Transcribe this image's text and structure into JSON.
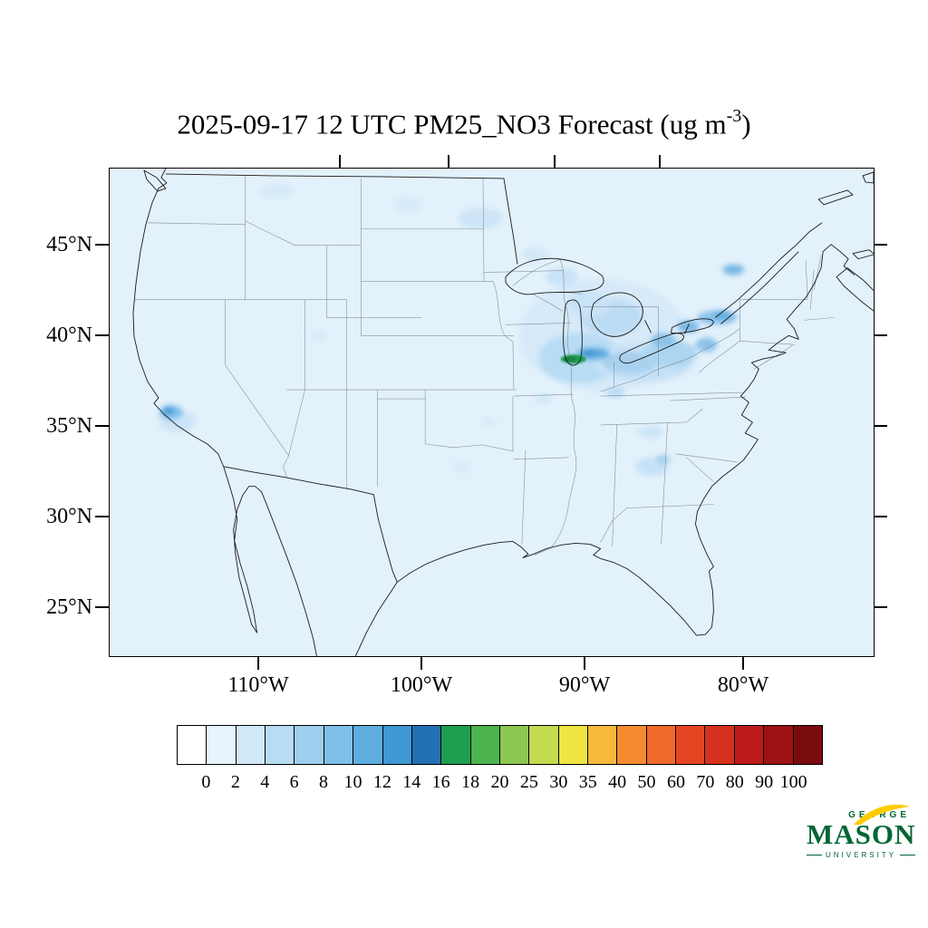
{
  "title": {
    "prefix": "2025-09-17 12 UTC PM25_NO3 Forecast (ug m",
    "sup": "-3",
    "suffix": ")"
  },
  "map": {
    "lat_ticks": [
      "45°N",
      "40°N",
      "35°N",
      "30°N",
      "25°N"
    ],
    "lon_ticks": [
      "110°W",
      "100°W",
      "90°W",
      "80°W"
    ]
  },
  "colorbar": {
    "labels": [
      "0",
      "2",
      "4",
      "6",
      "8",
      "10",
      "12",
      "14",
      "16",
      "18",
      "20",
      "25",
      "30",
      "35",
      "40",
      "50",
      "60",
      "70",
      "80",
      "90",
      "100"
    ],
    "colors": [
      "#ffffff",
      "#e8f4fb",
      "#d1e8f8",
      "#b7dcf4",
      "#9dcfef",
      "#7fc0e8",
      "#5facdf",
      "#3f97d3",
      "#2470b5",
      "#1e9e50",
      "#4db34e",
      "#8cc751",
      "#c3da51",
      "#f0e442",
      "#f6b93c",
      "#f58b31",
      "#ef6a2a",
      "#e64524",
      "#d6301f",
      "#bd1a1a",
      "#9e1214",
      "#7a0c10"
    ]
  },
  "logo": {
    "top": "GEORGE",
    "name": "MASON",
    "bottom": "UNIVERSITY",
    "green": "#006633",
    "gold": "#FFCC00"
  },
  "chart_data": {
    "type": "heatmap",
    "subtype": "filled-contour-forecast-map",
    "title": "2025-09-17 12 UTC PM25_NO3 Forecast (ug m-3)",
    "variable": "PM25_NO3",
    "units": "ug m-3",
    "valid_time": "2025-09-17 12 UTC",
    "region": "Continental United States",
    "lat_ticks_deg_n": [
      45,
      40,
      35,
      30,
      25
    ],
    "lon_ticks_deg_w": [
      110,
      100,
      90,
      80
    ],
    "levels": [
      0,
      2,
      4,
      6,
      8,
      10,
      12,
      14,
      16,
      18,
      20,
      25,
      30,
      35,
      40,
      50,
      60,
      70,
      80,
      90,
      100
    ],
    "palette": [
      "#ffffff",
      "#e8f4fb",
      "#d1e8f8",
      "#b7dcf4",
      "#9dcfef",
      "#7fc0e8",
      "#5facdf",
      "#3f97d3",
      "#2470b5",
      "#1e9e50",
      "#4db34e",
      "#8cc751",
      "#c3da51",
      "#f0e442",
      "#f6b93c",
      "#f58b31",
      "#ef6a2a",
      "#e64524",
      "#d6301f",
      "#bd1a1a",
      "#9e1214",
      "#7a0c10"
    ],
    "peak_color": "#1e9e50",
    "legend_position": "bottom",
    "grid": false,
    "observed_features": [
      {
        "region": "Most of the domain (CONUS, coasts, Canada, Mexico)",
        "value_ugm3": "0-2"
      },
      {
        "region": "Upper Midwest and Great Lakes (WI, IL, IN, MI, OH)",
        "value_ugm3": "2-8"
      },
      {
        "region": "Central Illinois / St. Louis area hotspot",
        "value_ugm3": "14-18 peak (green)"
      },
      {
        "region": "Lake Erie - Lake Ontario - upstate New York corridor",
        "value_ugm3": "4-8"
      },
      {
        "region": "Central California (San Joaquin Valley) spot",
        "value_ugm3": "6-10"
      },
      {
        "region": "Scattered light patches: ND/MN, Montana, Utah, Tennessee, Georgia",
        "value_ugm3": "2-4"
      }
    ]
  }
}
